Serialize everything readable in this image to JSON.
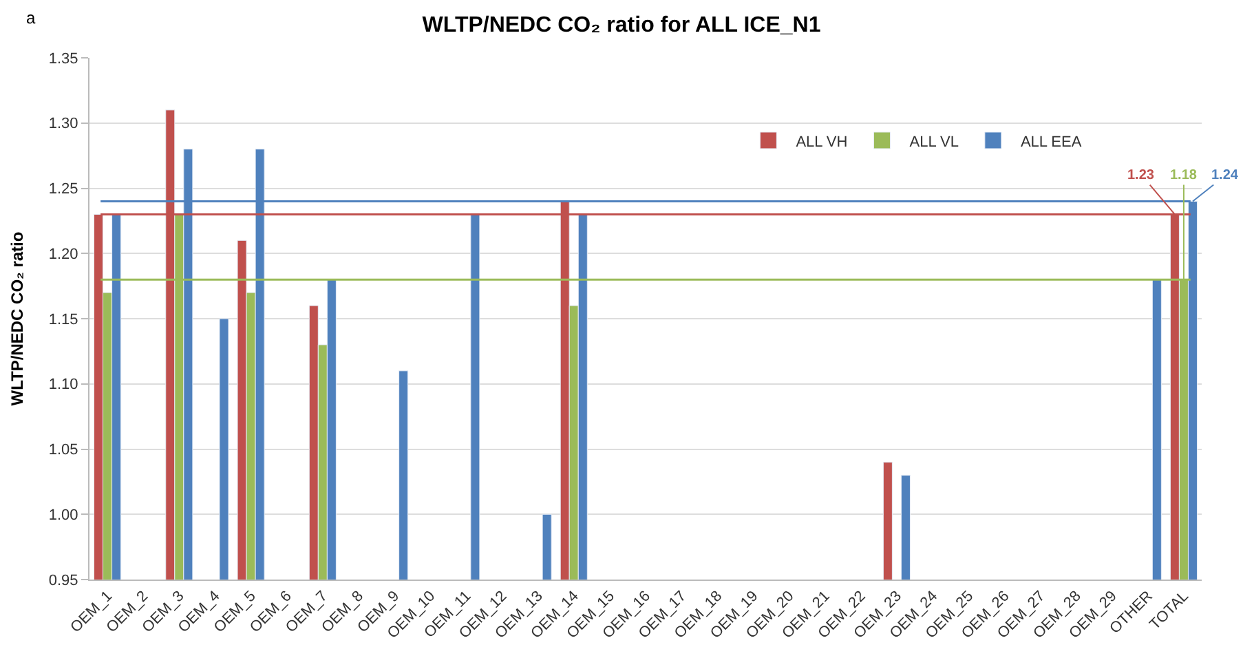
{
  "chart_data": {
    "type": "bar",
    "title": "WLTP/NEDC CO₂ ratio for ALL ICE_N1",
    "ylabel": "WLTP/NEDC CO₂ ratio",
    "annotations": [
      "a"
    ],
    "categories": [
      "OEM_1",
      "OEM_2",
      "OEM_3",
      "OEM_4",
      "OEM_5",
      "OEM_6",
      "OEM_7",
      "OEM_8",
      "OEM_9",
      "OEM_10",
      "OEM_11",
      "OEM_12",
      "OEM_13",
      "OEM_14",
      "OEM_15",
      "OEM_16",
      "OEM_17",
      "OEM_18",
      "OEM_19",
      "OEM_20",
      "OEM_21",
      "OEM_22",
      "OEM_23",
      "OEM_24",
      "OEM_25",
      "OEM_26",
      "OEM_27",
      "OEM_28",
      "OEM_29",
      "OTHER",
      "TOTAL"
    ],
    "series": [
      {
        "name": "ALL VH",
        "color": "#c0504d",
        "values": [
          1.23,
          null,
          1.31,
          null,
          1.21,
          null,
          1.16,
          null,
          null,
          null,
          null,
          null,
          null,
          1.24,
          null,
          null,
          null,
          null,
          null,
          null,
          null,
          null,
          1.04,
          null,
          null,
          null,
          null,
          null,
          null,
          null,
          1.23
        ],
        "value_labels": [
          null,
          null,
          null,
          null,
          null,
          null,
          null,
          null,
          null,
          null,
          null,
          null,
          null,
          null,
          null,
          null,
          null,
          null,
          null,
          null,
          null,
          null,
          null,
          null,
          null,
          null,
          null,
          null,
          null,
          null,
          "1.23"
        ]
      },
      {
        "name": "ALL VL",
        "color": "#9bbb59",
        "values": [
          1.17,
          null,
          1.23,
          null,
          1.17,
          null,
          1.13,
          null,
          null,
          null,
          null,
          null,
          null,
          1.16,
          null,
          null,
          null,
          null,
          null,
          null,
          null,
          null,
          null,
          null,
          null,
          null,
          null,
          null,
          null,
          null,
          1.18
        ],
        "value_labels": [
          null,
          null,
          null,
          null,
          null,
          null,
          null,
          null,
          null,
          null,
          null,
          null,
          null,
          null,
          null,
          null,
          null,
          null,
          null,
          null,
          null,
          null,
          null,
          null,
          null,
          null,
          null,
          null,
          null,
          null,
          "1.18"
        ]
      },
      {
        "name": "ALL EEA",
        "color": "#4f81bd",
        "values": [
          1.23,
          null,
          1.28,
          1.15,
          1.28,
          null,
          1.18,
          null,
          1.11,
          null,
          1.23,
          null,
          1.0,
          1.23,
          null,
          null,
          null,
          null,
          null,
          null,
          null,
          null,
          1.03,
          null,
          null,
          null,
          null,
          null,
          null,
          1.18,
          1.24
        ],
        "value_labels": [
          null,
          null,
          null,
          null,
          null,
          null,
          null,
          null,
          null,
          null,
          null,
          null,
          null,
          null,
          null,
          null,
          null,
          null,
          null,
          null,
          null,
          null,
          null,
          null,
          null,
          null,
          null,
          null,
          null,
          null,
          "1.24"
        ]
      }
    ],
    "ref_lines": [
      {
        "axis": "y",
        "value": 1.24,
        "color": "#4f81bd"
      },
      {
        "axis": "y",
        "value": 1.23,
        "color": "#c0504d"
      },
      {
        "axis": "y",
        "value": 1.18,
        "color": "#9bbb59"
      }
    ],
    "ylim": [
      0.95,
      1.35
    ],
    "yticks": [
      {
        "value": 0.95,
        "label": "0.95"
      },
      {
        "value": 1.0,
        "label": "1.00"
      },
      {
        "value": 1.05,
        "label": "1.05"
      },
      {
        "value": 1.1,
        "label": "1.10"
      },
      {
        "value": 1.15,
        "label": "1.15"
      },
      {
        "value": 1.2,
        "label": "1.20"
      },
      {
        "value": 1.25,
        "label": "1.25"
      },
      {
        "value": 1.3,
        "label": "1.30"
      },
      {
        "value": 1.35,
        "label": "1.35"
      }
    ],
    "grid": "y",
    "legend": "top right"
  }
}
